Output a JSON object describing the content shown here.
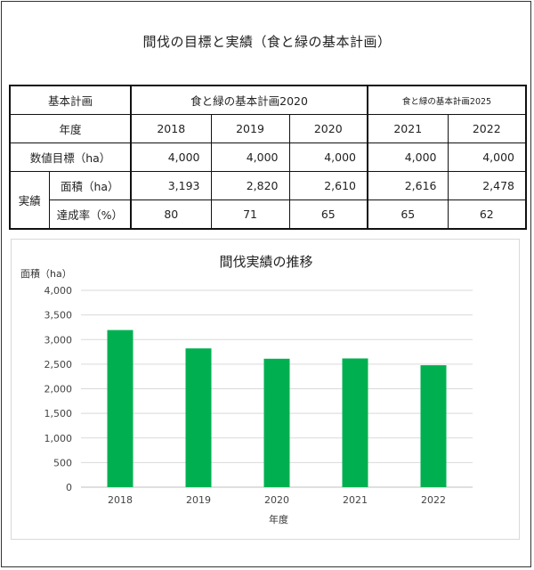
{
  "page_title": "間伐の目標と実績（食と緑の基本計画）",
  "table": {
    "header_plan_label": "基本計画",
    "plan_2020": "食と緑の基本計画2020",
    "plan_2025": "食と緑の基本計画2025",
    "year_label": "年度",
    "years": [
      "2018",
      "2019",
      "2020",
      "2021",
      "2022"
    ],
    "target_label": "数値目標（ha）",
    "targets": [
      "4,000",
      "4,000",
      "4,000",
      "4,000",
      "4,000"
    ],
    "actual_label": "実績",
    "area_label": "面積（ha）",
    "areas": [
      "3,193",
      "2,820",
      "2,610",
      "2,616",
      "2,478"
    ],
    "rate_label": "達成率（%）",
    "rates": [
      "80",
      "71",
      "65",
      "65",
      "62"
    ]
  },
  "chart_data": {
    "type": "bar",
    "title": "間伐実績の推移",
    "categories": [
      "2018",
      "2019",
      "2020",
      "2021",
      "2022"
    ],
    "values": [
      3193,
      2820,
      2610,
      2616,
      2478
    ],
    "xlabel": "年度",
    "ylabel": "面積（ha）",
    "ylim": [
      0,
      4000
    ],
    "yticks": [
      0,
      500,
      1000,
      1500,
      2000,
      2500,
      3000,
      3500,
      4000
    ],
    "ytick_labels": [
      "0",
      "500",
      "1,000",
      "1,500",
      "2,000",
      "2,500",
      "3,000",
      "3,500",
      "4,000"
    ],
    "grid": true,
    "legend": "none",
    "bar_color": "#00B050"
  }
}
